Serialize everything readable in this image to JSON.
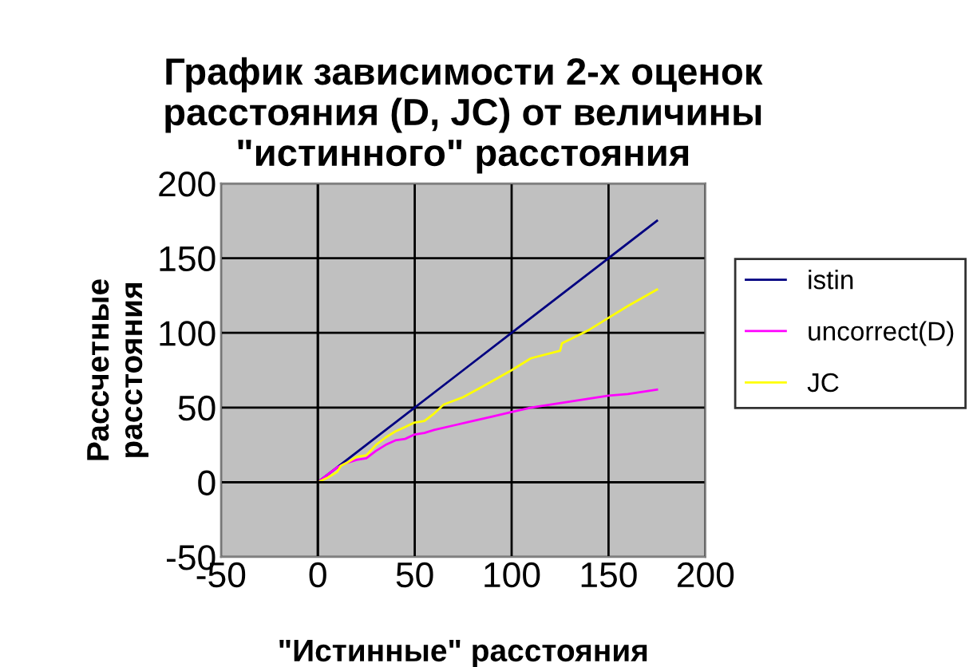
{
  "chart_data": {
    "type": "line",
    "title": "График зависимости 2-х оценок\nрасстояния (D, JC) от величины\n\"истинного\" расстояния",
    "xlabel": "\"Истинные\" расстояния",
    "ylabel": "Рассчетные\nрасстояния",
    "xlim": [
      -50,
      200
    ],
    "xticks": [
      -50,
      0,
      50,
      100,
      150,
      200
    ],
    "ylim": [
      -50,
      200
    ],
    "yticks": [
      -50,
      0,
      50,
      100,
      150,
      200
    ],
    "grid": true,
    "legend": "right",
    "series": [
      {
        "name": "istin",
        "color": "#000080",
        "x": [
          0,
          25,
          50,
          75,
          100,
          125,
          150,
          175
        ],
        "values": [
          0,
          25,
          50,
          75,
          100,
          125,
          150,
          175
        ]
      },
      {
        "name": "uncorrect(D)",
        "color": "#ff00ff",
        "x": [
          0,
          10,
          15,
          20,
          25,
          30,
          35,
          40,
          45,
          50,
          55,
          60,
          70,
          80,
          90,
          100,
          110,
          120,
          130,
          140,
          150,
          160,
          175
        ],
        "values": [
          0,
          10,
          13,
          15,
          16,
          21,
          25,
          28,
          29,
          32,
          33,
          35,
          38,
          41,
          44,
          47,
          50,
          52,
          54,
          56,
          58,
          59,
          62
        ]
      },
      {
        "name": "JC",
        "color": "#ffff00",
        "x": [
          0,
          5,
          10,
          12,
          15,
          20,
          25,
          30,
          35,
          40,
          45,
          50,
          55,
          60,
          65,
          75,
          85,
          100,
          110,
          125,
          126,
          140,
          150,
          160,
          175
        ],
        "values": [
          0,
          3,
          7,
          11,
          13,
          17,
          18,
          25,
          30,
          34,
          37,
          40,
          41,
          46,
          52,
          57,
          64,
          75,
          83,
          88,
          93,
          102,
          110,
          118,
          129
        ]
      }
    ]
  }
}
